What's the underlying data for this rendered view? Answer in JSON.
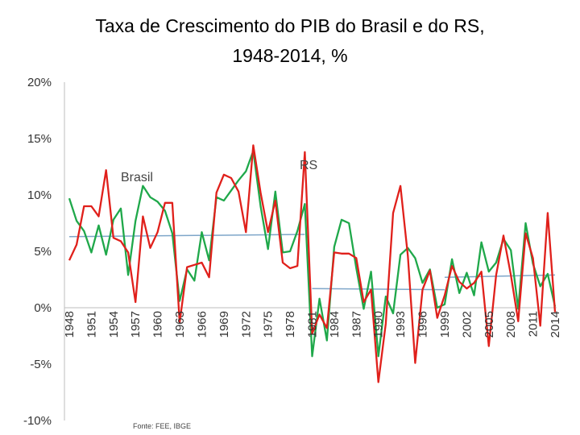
{
  "chart_data": {
    "type": "line",
    "title": "Taxa de Crescimento do PIB do Brasil e do RS,",
    "subtitle": "1948-2014, %",
    "xlabel": "",
    "ylabel": "",
    "ylim": [
      -10,
      20
    ],
    "xlim": [
      1948,
      2014
    ],
    "ytick_labels": [
      "20%",
      "15%",
      "10%",
      "5%",
      "0%",
      "-5%",
      "-10%"
    ],
    "ytick_values": [
      20,
      15,
      10,
      5,
      0,
      -5,
      -10
    ],
    "xtick_labels": [
      "1948",
      "1951",
      "1954",
      "1957",
      "1960",
      "1963",
      "1966",
      "1969",
      "1972",
      "1975",
      "1978",
      "1981",
      "1984",
      "1987",
      "1990",
      "1993",
      "1996",
      "1999",
      "2002",
      "2005",
      "2008",
      "2011",
      "2014"
    ],
    "legend": "none",
    "grid": false,
    "annotations": [
      {
        "text": "Brasil",
        "x": 1955,
        "y": 11.2
      },
      {
        "text": "RS",
        "x": 1979.3,
        "y": 12.3
      }
    ],
    "source_note": "Fonte: FEE, IBGE",
    "years": [
      1948,
      1949,
      1950,
      1951,
      1952,
      1953,
      1954,
      1955,
      1956,
      1957,
      1958,
      1959,
      1960,
      1961,
      1962,
      1963,
      1964,
      1965,
      1966,
      1967,
      1968,
      1969,
      1970,
      1971,
      1972,
      1973,
      1974,
      1975,
      1976,
      1977,
      1978,
      1979,
      1980,
      1981,
      1982,
      1983,
      1984,
      1985,
      1986,
      1987,
      1988,
      1989,
      1990,
      1991,
      1992,
      1993,
      1994,
      1995,
      1996,
      1997,
      1998,
      1999,
      2000,
      2001,
      2002,
      2003,
      2004,
      2005,
      2006,
      2007,
      2008,
      2009,
      2010,
      2011,
      2012,
      2013,
      2014
    ],
    "series": [
      {
        "name": "Brasil",
        "color": "#1fa84a",
        "values": [
          9.7,
          7.7,
          6.8,
          4.9,
          7.3,
          4.7,
          7.8,
          8.8,
          2.9,
          7.7,
          10.8,
          9.8,
          9.4,
          8.6,
          6.6,
          0.6,
          3.4,
          2.4,
          6.7,
          4.2,
          9.8,
          9.5,
          10.4,
          11.3,
          12.1,
          13.9,
          9.0,
          5.2,
          10.3,
          4.9,
          5.0,
          6.8,
          9.2,
          -4.3,
          0.8,
          -2.9,
          5.4,
          7.8,
          7.5,
          3.5,
          -0.1,
          3.2,
          -4.3,
          1.0,
          -0.5,
          4.7,
          5.3,
          4.4,
          2.2,
          3.4,
          0.0,
          0.3,
          4.3,
          1.3,
          3.1,
          1.1,
          5.8,
          3.2,
          4.0,
          6.1,
          5.1,
          -0.1,
          7.5,
          3.9,
          1.9,
          3.0,
          0.1
        ]
      },
      {
        "name": "RS",
        "color": "#e0201b",
        "values": [
          4.2,
          5.6,
          9.0,
          9.0,
          8.1,
          12.2,
          6.2,
          5.9,
          4.9,
          0.5,
          8.1,
          5.3,
          6.7,
          9.3,
          9.3,
          -1.3,
          3.6,
          3.8,
          4.0,
          2.7,
          10.2,
          11.8,
          11.5,
          10.3,
          6.7,
          14.4,
          10.2,
          6.7,
          9.5,
          4.0,
          3.5,
          3.7,
          13.8,
          -2.3,
          -0.6,
          -1.8,
          4.9,
          4.8,
          4.8,
          4.4,
          0.5,
          1.6,
          -6.6,
          -1.4,
          8.4,
          10.8,
          4.6,
          -4.9,
          1.6,
          3.3,
          -0.9,
          1.1,
          3.7,
          2.3,
          1.7,
          2.2,
          3.2,
          -3.4,
          2.9,
          6.4,
          2.9,
          -1.2,
          6.6,
          4.4,
          -1.6,
          8.4,
          -0.4
        ]
      }
    ],
    "trend_lines": [
      {
        "color": "#7ea6c9",
        "points": [
          [
            1948,
            6.3
          ],
          [
            1980,
            6.5
          ]
        ]
      },
      {
        "color": "#7ea6c9",
        "points": [
          [
            1981,
            1.7
          ],
          [
            1999,
            1.6
          ]
        ]
      },
      {
        "color": "#7ea6c9",
        "points": [
          [
            1999,
            2.7
          ],
          [
            2014,
            2.9
          ]
        ]
      }
    ]
  }
}
